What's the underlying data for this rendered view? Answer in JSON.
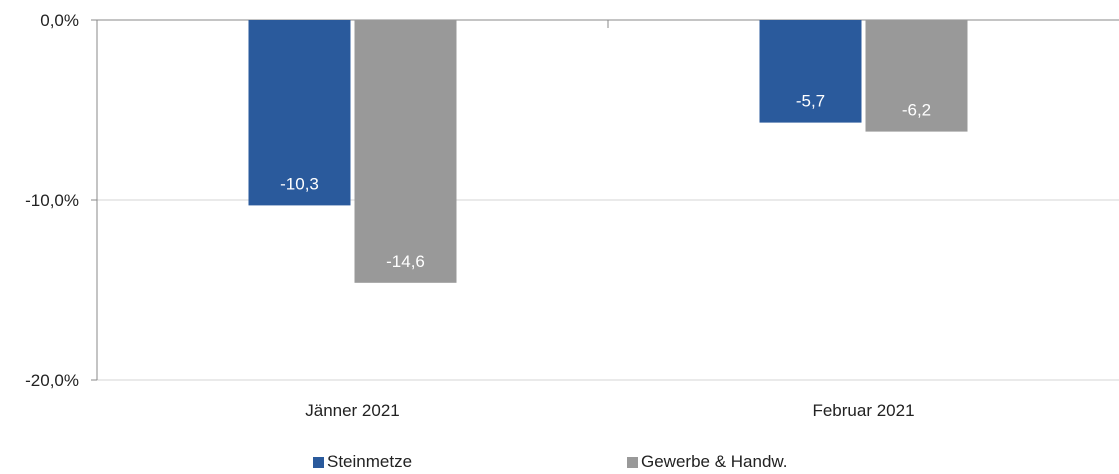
{
  "chart_data": {
    "type": "bar",
    "categories": [
      "Jänner 2021",
      "Februar 2021"
    ],
    "series": [
      {
        "name": "Steinmetze",
        "values": [
          -10.3,
          -5.7
        ],
        "labels": [
          "-10,3",
          "-5,7"
        ],
        "color": "#2a5a9c"
      },
      {
        "name": "Gewerbe & Handw.",
        "values": [
          -14.6,
          -6.2
        ],
        "labels": [
          "-14,6",
          "-6,2"
        ],
        "color": "#999999"
      }
    ],
    "ylim": [
      -20,
      0
    ],
    "yticks": [
      0,
      -10,
      -20
    ],
    "ytick_labels": [
      "0,0%",
      "-10,0%",
      "-20,0%"
    ],
    "grid": true,
    "legend_position": "bottom"
  }
}
